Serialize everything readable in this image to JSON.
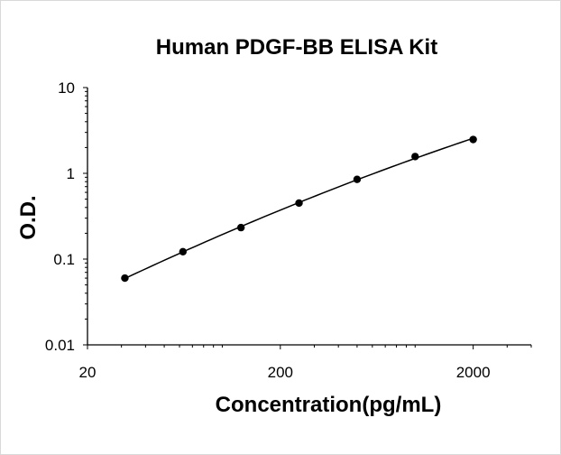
{
  "chart_data": {
    "type": "scatter",
    "title": "Human PDGF-BB ELISA Kit",
    "xlabel": "Concentration(pg/mL)",
    "ylabel": "O.D.",
    "x_scale": "log",
    "y_scale": "log",
    "xlim": [
      20,
      4000
    ],
    "ylim": [
      0.01,
      10
    ],
    "x_ticks": [
      {
        "value": 20,
        "label": "20"
      },
      {
        "value": 200,
        "label": "200"
      },
      {
        "value": 2000,
        "label": "2000"
      }
    ],
    "y_ticks": [
      {
        "value": 0.01,
        "label": "0.01"
      },
      {
        "value": 0.1,
        "label": "0.1"
      },
      {
        "value": 1,
        "label": "1"
      },
      {
        "value": 10,
        "label": "10"
      }
    ],
    "grid": false,
    "legend": "none",
    "series": [
      {
        "x": [
          31.25,
          62.5,
          125,
          250,
          500,
          1000,
          2000
        ],
        "y": [
          0.06,
          0.122,
          0.233,
          0.45,
          0.85,
          1.57,
          2.48
        ],
        "color": "#000000",
        "fit_line": true
      }
    ]
  }
}
